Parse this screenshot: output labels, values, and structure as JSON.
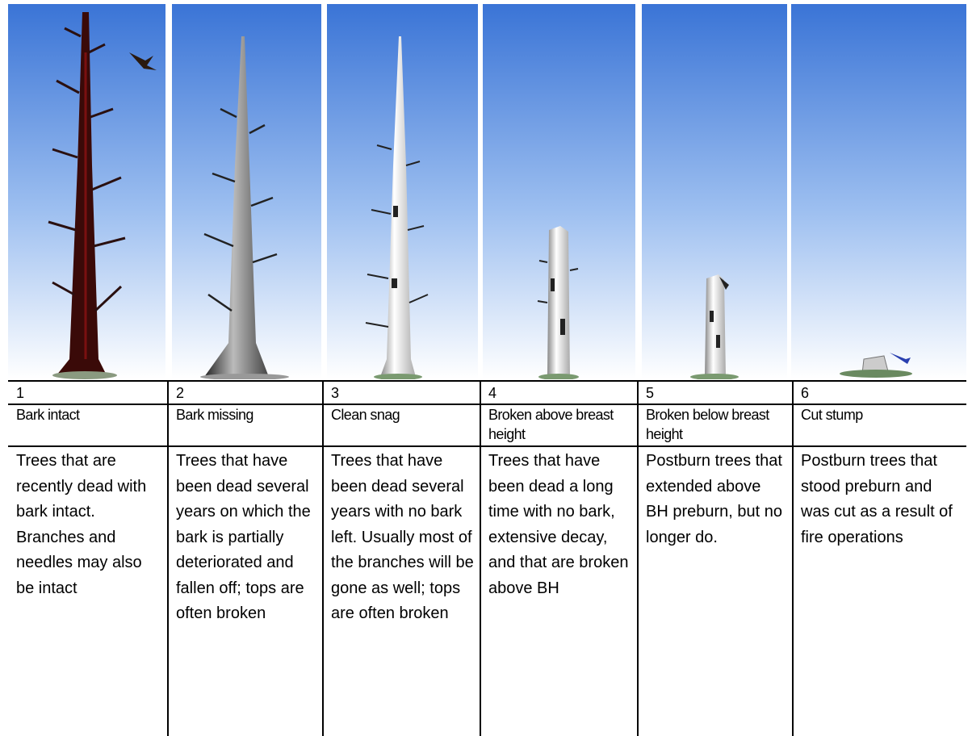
{
  "columns": [
    {
      "number": "1",
      "name": "Bark intact",
      "description": "Trees that are recently dead with bark intact. Branches and needles may also be intact"
    },
    {
      "number": "2",
      "name": "Bark missing",
      "description": "Trees that have been dead several years on which the bark is partially deteriorated and fallen off; tops are often broken"
    },
    {
      "number": "3",
      "name": "Clean snag",
      "description": "Trees that have been dead several years with no bark left. Usually most of the branches will be gone as well; tops are often broken"
    },
    {
      "number": "4",
      "name": "Broken above breast height",
      "description": "Trees that have been dead a long time with no bark, extensive decay, and that are broken above BH"
    },
    {
      "number": "5",
      "name": "Broken below breast height",
      "description": "Postburn trees that extended above BH preburn, but no longer do."
    },
    {
      "number": "6",
      "name": "Cut stump",
      "description": "Postburn trees that stood preburn and was cut as a result of fire operations"
    }
  ]
}
